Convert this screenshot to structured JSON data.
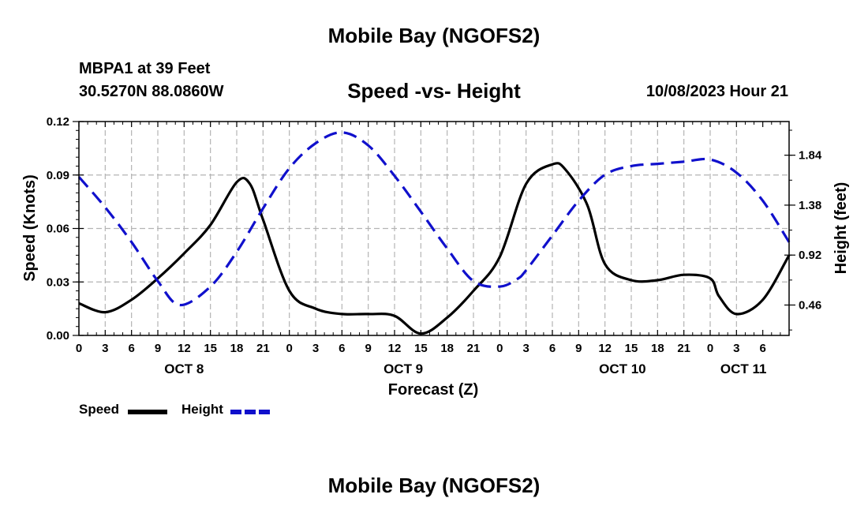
{
  "header": {
    "title": "Mobile Bay (NGOFS2)",
    "station": "MBPA1 at 39 Feet",
    "coordinates": "30.5270N  88.0860W",
    "subtitle": "Speed -vs- Height",
    "datetime": "10/08/2023 Hour 21"
  },
  "footer": {
    "title": "Mobile Bay (NGOFS2)"
  },
  "legend": {
    "speed_label": "Speed",
    "height_label": "Height"
  },
  "colors": {
    "speed": "#000000",
    "height": "#1010cc",
    "grid": "#b4b4b4"
  },
  "chart_data": {
    "type": "line",
    "title": "Speed -vs- Height",
    "xlabel": "Forecast (Z)",
    "ylabel": "Speed (Knots)",
    "y2label": "Height (feet)",
    "x_hours_range": [
      0,
      81
    ],
    "x_tick_labels": [
      "0",
      "3",
      "6",
      "9",
      "12",
      "15",
      "18",
      "21",
      "0",
      "3",
      "6",
      "9",
      "12",
      "15",
      "18",
      "21",
      "0",
      "3",
      "6",
      "9",
      "12",
      "15",
      "18",
      "21",
      "0",
      "3",
      "6"
    ],
    "date_labels": [
      {
        "label": "OCT 8",
        "hour": 12
      },
      {
        "label": "OCT 9",
        "hour": 37
      },
      {
        "label": "OCT 10",
        "hour": 62
      },
      {
        "label": "OCT 11",
        "hour": 75.8
      }
    ],
    "ylim": [
      0,
      0.12
    ],
    "y_ticks": [
      "0.00",
      "0.03",
      "0.06",
      "0.09",
      "0.12"
    ],
    "y2lim": [
      0.18,
      2.15
    ],
    "y2_ticks": [
      "0.46",
      "0.92",
      "1.38",
      "1.84"
    ],
    "series": [
      {
        "name": "Speed",
        "axis": "left",
        "style": "solid",
        "x": [
          0,
          3,
          6,
          9,
          12,
          15,
          18,
          19.5,
          21,
          24,
          27,
          30,
          33,
          36,
          39,
          42,
          45,
          48,
          51,
          54,
          55.5,
          58,
          60,
          63,
          66,
          69,
          72,
          73,
          75,
          78,
          81
        ],
        "values": [
          0.018,
          0.013,
          0.02,
          0.032,
          0.046,
          0.062,
          0.086,
          0.085,
          0.065,
          0.025,
          0.015,
          0.012,
          0.012,
          0.011,
          0.001,
          0.01,
          0.025,
          0.044,
          0.085,
          0.096,
          0.093,
          0.073,
          0.04,
          0.031,
          0.031,
          0.034,
          0.032,
          0.022,
          0.012,
          0.02,
          0.045
        ]
      },
      {
        "name": "Height",
        "axis": "right",
        "style": "dashed",
        "x": [
          0,
          3,
          6,
          9,
          11.5,
          15,
          18,
          21,
          24,
          27,
          30,
          33,
          36,
          39,
          42,
          45,
          48,
          50,
          51,
          54,
          57,
          60,
          63,
          66,
          69,
          72,
          75,
          78,
          81
        ],
        "values": [
          1.64,
          1.36,
          1.04,
          0.68,
          0.46,
          0.63,
          0.95,
          1.35,
          1.72,
          1.95,
          2.05,
          1.93,
          1.65,
          1.32,
          0.98,
          0.68,
          0.63,
          0.7,
          0.78,
          1.1,
          1.42,
          1.66,
          1.74,
          1.76,
          1.78,
          1.8,
          1.68,
          1.42,
          1.04
        ]
      }
    ]
  }
}
